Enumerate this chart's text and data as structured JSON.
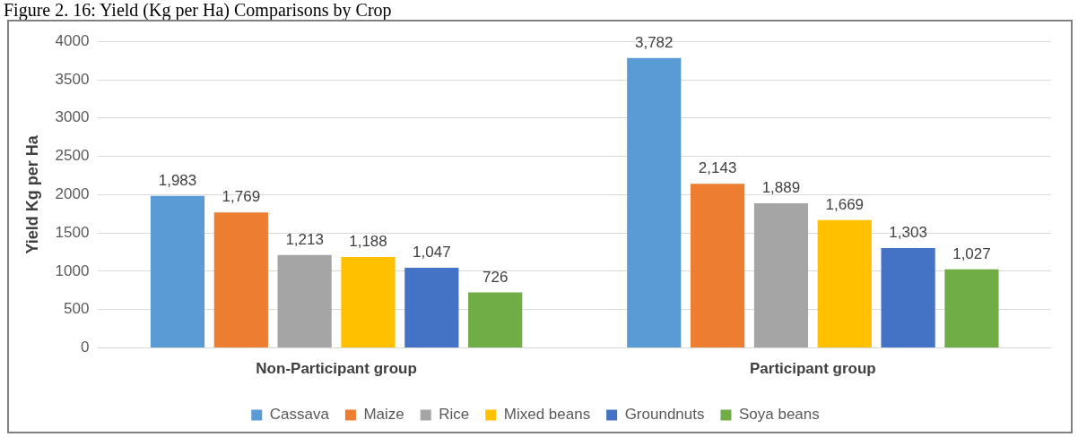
{
  "chart_data": {
    "type": "bar",
    "title": "Figure 2. 16: Yield (Kg per Ha) Comparisons by Crop",
    "ylabel": "Yield Kg per Ha",
    "categories": [
      "Non-Participant group",
      "Participant group"
    ],
    "series": [
      {
        "name": "Cassava",
        "color": "#5b9bd5",
        "values": [
          1983,
          3782
        ],
        "value_labels": [
          "1,983",
          "3,782"
        ]
      },
      {
        "name": "Maize",
        "color": "#ed7d31",
        "values": [
          1769,
          2143
        ],
        "value_labels": [
          "1,769",
          "2,143"
        ]
      },
      {
        "name": "Rice",
        "color": "#a5a5a5",
        "values": [
          1213,
          1889
        ],
        "value_labels": [
          "1,213",
          "1,889"
        ]
      },
      {
        "name": "Mixed beans",
        "color": "#ffc000",
        "values": [
          1188,
          1669
        ],
        "value_labels": [
          "1,188",
          "1,669"
        ]
      },
      {
        "name": "Groundnuts",
        "color": "#4472c4",
        "values": [
          1047,
          1303
        ],
        "value_labels": [
          "1,047",
          "1,303"
        ]
      },
      {
        "name": "Soya beans",
        "color": "#70ad47",
        "values": [
          726,
          1027
        ],
        "value_labels": [
          "726",
          "1,027"
        ]
      }
    ],
    "ylim": [
      0,
      4000
    ],
    "yticks": [
      0,
      500,
      1000,
      1500,
      2000,
      2500,
      3000,
      3500,
      4000
    ],
    "grid": "y",
    "legend": "bottom"
  }
}
